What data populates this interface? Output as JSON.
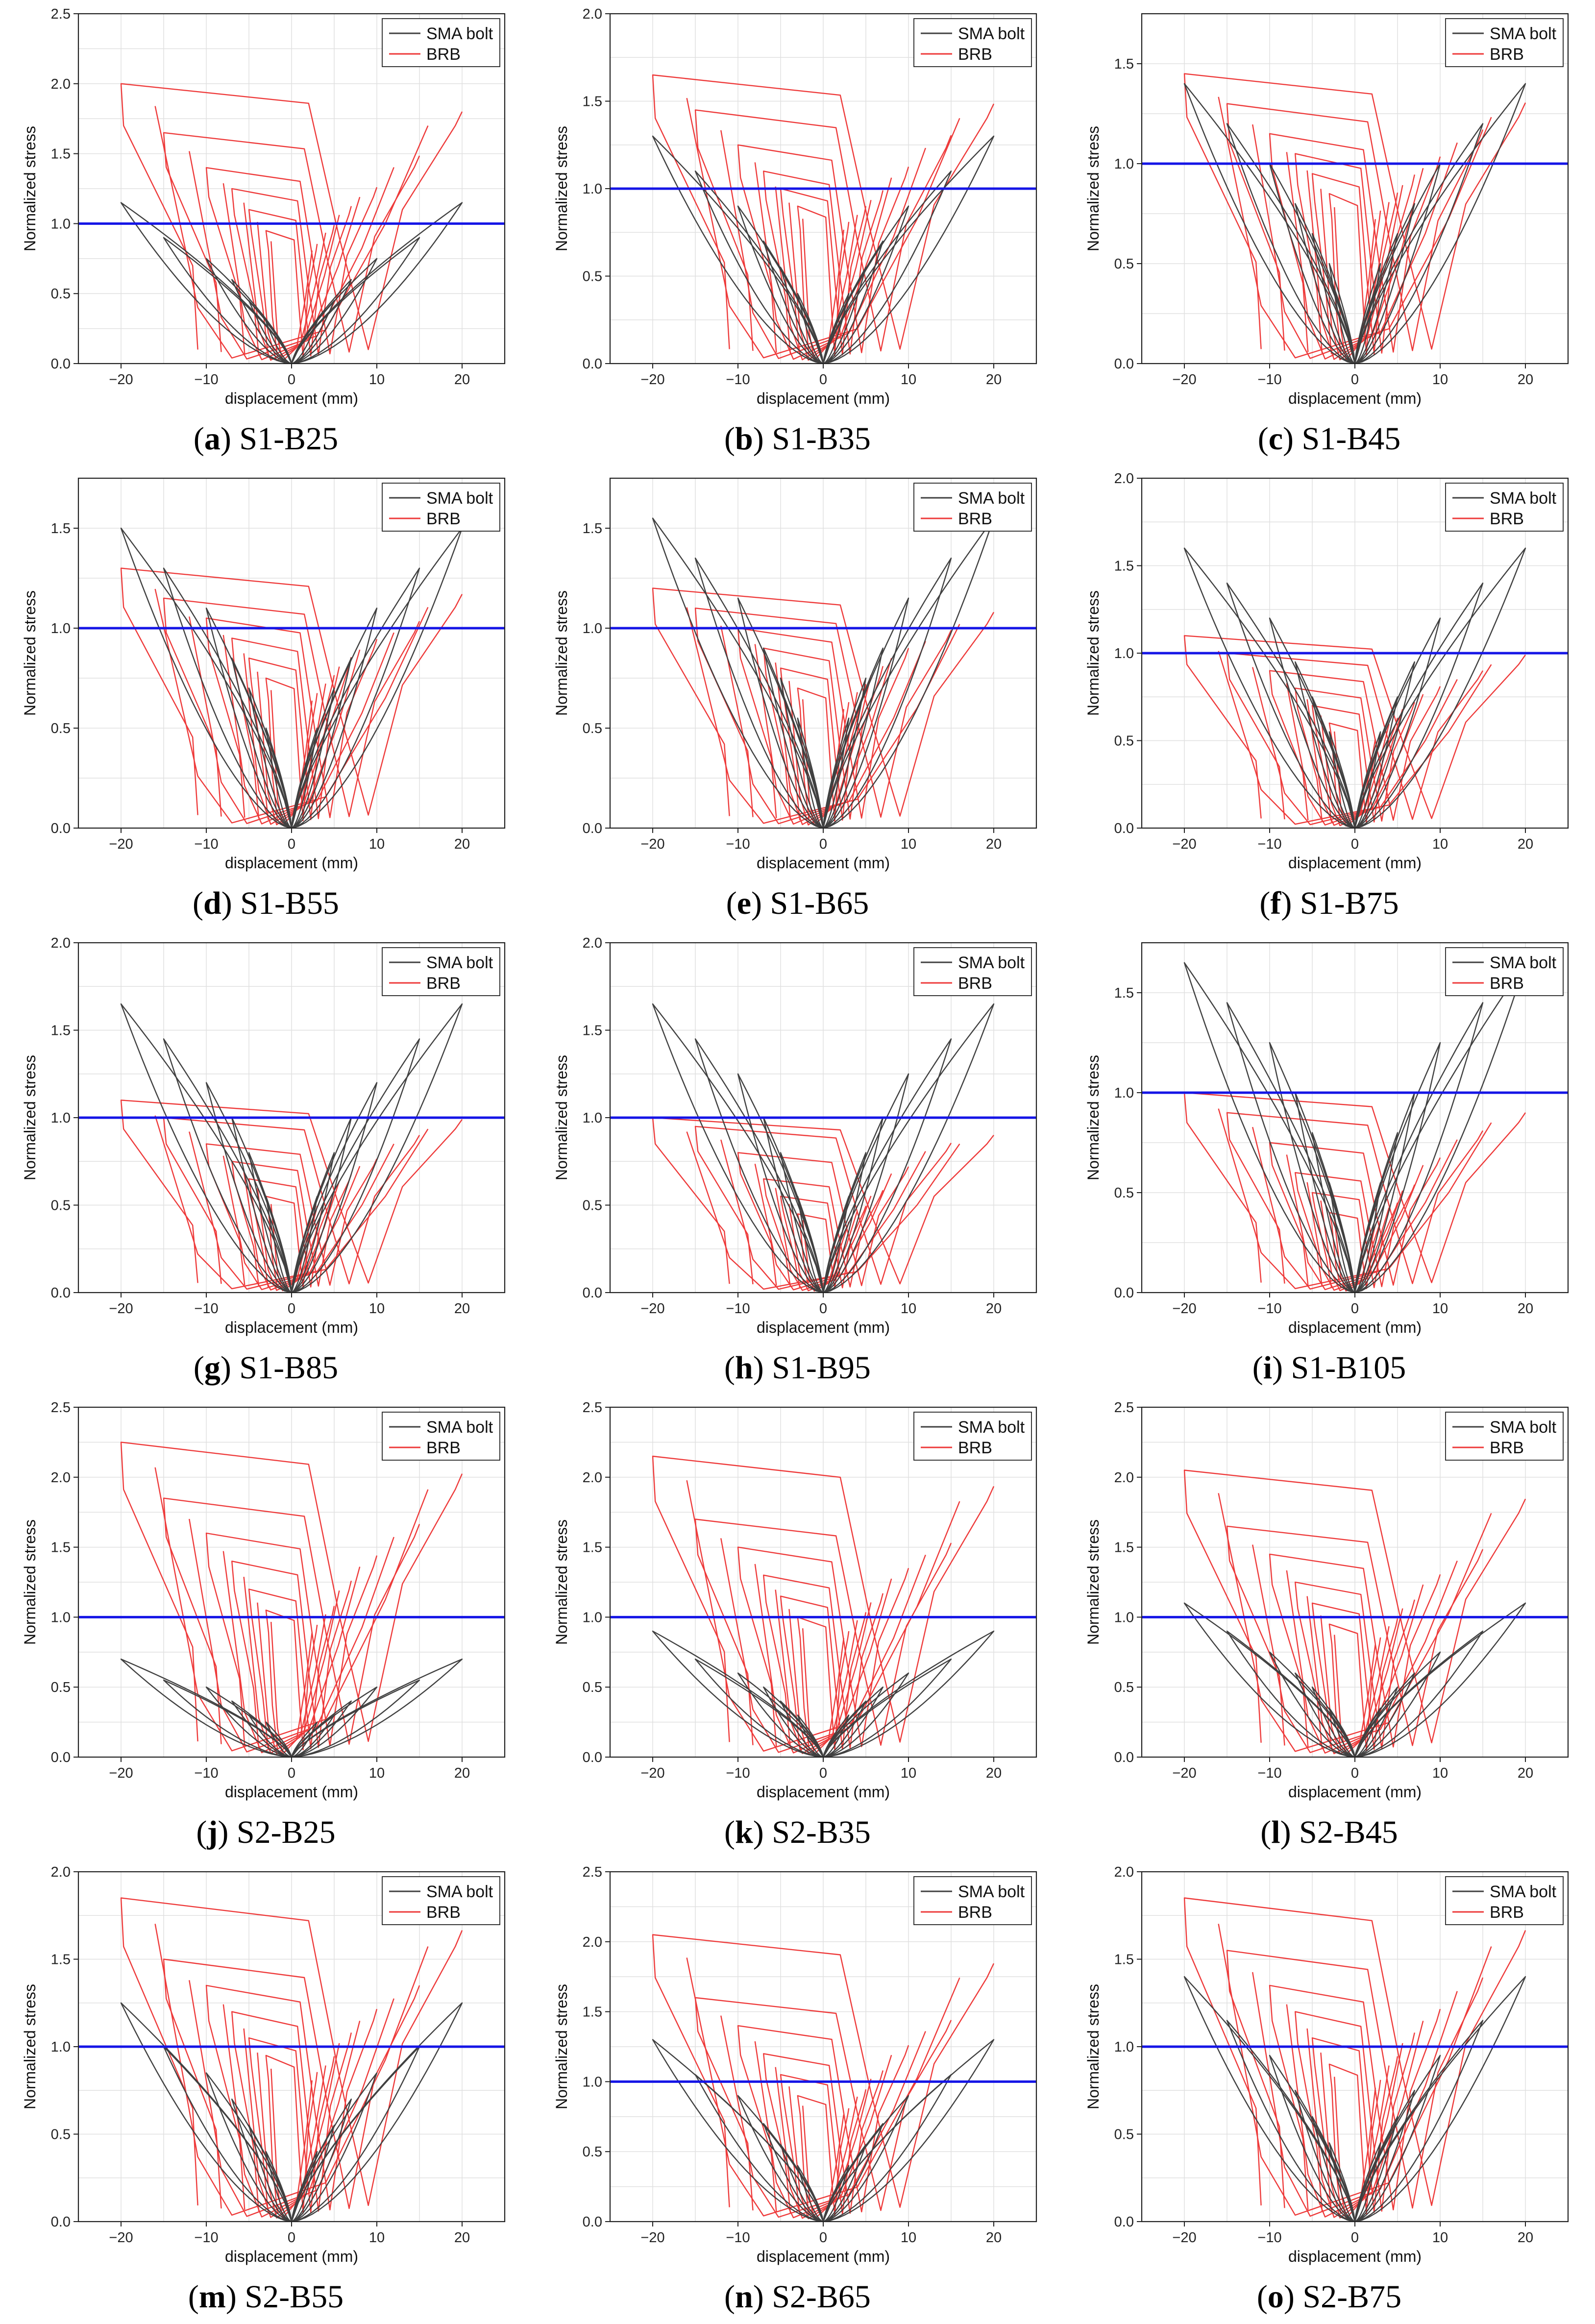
{
  "figure": {
    "x_label": "displacement (mm)",
    "y_label": "Normalized stress",
    "legend": [
      "SMA bolt",
      "BRB"
    ],
    "colors": {
      "sma": "#404040",
      "brb": "#ee3a3a",
      "ref": "#1515e6"
    }
  },
  "chart_data": [
    {
      "id": "a",
      "letter": "a",
      "name": "S1-B25",
      "type": "line",
      "xlim": [
        -25,
        25
      ],
      "ylim": [
        0,
        2.5
      ],
      "xticks": [
        -20,
        -10,
        0,
        10,
        20
      ],
      "yticks": [
        0.0,
        0.5,
        1.0,
        1.5,
        2.0,
        2.5
      ],
      "amplitudes": [
        3,
        5,
        7,
        10,
        15,
        20
      ],
      "sma_peak": [
        0.3,
        0.45,
        0.6,
        0.75,
        0.9,
        1.15
      ],
      "brb_peak": [
        0.95,
        1.1,
        1.25,
        1.4,
        1.65,
        2.0
      ],
      "reference_line": 1.0
    },
    {
      "id": "b",
      "letter": "b",
      "name": "S1-B35",
      "type": "line",
      "xlim": [
        -25,
        25
      ],
      "ylim": [
        0,
        2.0
      ],
      "xticks": [
        -20,
        -10,
        0,
        10,
        20
      ],
      "yticks": [
        0.0,
        0.5,
        1.0,
        1.5,
        2.0
      ],
      "amplitudes": [
        3,
        5,
        7,
        10,
        15,
        20
      ],
      "sma_peak": [
        0.4,
        0.55,
        0.7,
        0.9,
        1.1,
        1.3
      ],
      "brb_peak": [
        0.9,
        1.0,
        1.1,
        1.25,
        1.45,
        1.65
      ],
      "reference_line": 1.0
    },
    {
      "id": "c",
      "letter": "c",
      "name": "S1-B45",
      "type": "line",
      "xlim": [
        -25,
        25
      ],
      "ylim": [
        0,
        1.75
      ],
      "xticks": [
        -20,
        -10,
        0,
        10,
        20
      ],
      "yticks": [
        0.0,
        0.5,
        1.0,
        1.5
      ],
      "amplitudes": [
        3,
        5,
        7,
        10,
        15,
        20
      ],
      "sma_peak": [
        0.5,
        0.65,
        0.8,
        1.0,
        1.2,
        1.4
      ],
      "brb_peak": [
        0.85,
        0.95,
        1.05,
        1.15,
        1.3,
        1.45
      ],
      "reference_line": 1.0
    },
    {
      "id": "d",
      "letter": "d",
      "name": "S1-B55",
      "type": "line",
      "xlim": [
        -25,
        25
      ],
      "ylim": [
        0,
        1.75
      ],
      "xticks": [
        -20,
        -10,
        0,
        10,
        20
      ],
      "yticks": [
        0.0,
        0.5,
        1.0,
        1.5
      ],
      "amplitudes": [
        3,
        5,
        7,
        10,
        15,
        20
      ],
      "sma_peak": [
        0.5,
        0.7,
        0.85,
        1.1,
        1.3,
        1.5
      ],
      "brb_peak": [
        0.75,
        0.85,
        0.95,
        1.05,
        1.15,
        1.3
      ],
      "reference_line": 1.0
    },
    {
      "id": "e",
      "letter": "e",
      "name": "S1-B65",
      "type": "line",
      "xlim": [
        -25,
        25
      ],
      "ylim": [
        0,
        1.75
      ],
      "xticks": [
        -20,
        -10,
        0,
        10,
        20
      ],
      "yticks": [
        0.0,
        0.5,
        1.0,
        1.5
      ],
      "amplitudes": [
        3,
        5,
        7,
        10,
        15,
        20
      ],
      "sma_peak": [
        0.55,
        0.75,
        0.9,
        1.15,
        1.35,
        1.55
      ],
      "brb_peak": [
        0.7,
        0.8,
        0.9,
        1.0,
        1.1,
        1.2
      ],
      "reference_line": 1.0
    },
    {
      "id": "f",
      "letter": "f",
      "name": "S1-B75",
      "type": "line",
      "xlim": [
        -25,
        25
      ],
      "ylim": [
        0,
        2.0
      ],
      "xticks": [
        -20,
        -10,
        0,
        10,
        20
      ],
      "yticks": [
        0.0,
        0.5,
        1.0,
        1.5,
        2.0
      ],
      "amplitudes": [
        3,
        5,
        7,
        10,
        15,
        20
      ],
      "sma_peak": [
        0.55,
        0.75,
        0.95,
        1.2,
        1.4,
        1.6
      ],
      "brb_peak": [
        0.6,
        0.7,
        0.8,
        0.9,
        1.0,
        1.1
      ],
      "reference_line": 1.0
    },
    {
      "id": "g",
      "letter": "g",
      "name": "S1-B85",
      "type": "line",
      "xlim": [
        -25,
        25
      ],
      "ylim": [
        0,
        2.0
      ],
      "xticks": [
        -20,
        -10,
        0,
        10,
        20
      ],
      "yticks": [
        0.0,
        0.5,
        1.0,
        1.5,
        2.0
      ],
      "amplitudes": [
        3,
        5,
        7,
        10,
        15,
        20
      ],
      "sma_peak": [
        0.55,
        0.8,
        1.0,
        1.2,
        1.45,
        1.65
      ],
      "brb_peak": [
        0.55,
        0.65,
        0.75,
        0.85,
        1.0,
        1.1
      ],
      "reference_line": 1.0
    },
    {
      "id": "h",
      "letter": "h",
      "name": "S1-B95",
      "type": "line",
      "xlim": [
        -25,
        25
      ],
      "ylim": [
        0,
        2.0
      ],
      "xticks": [
        -20,
        -10,
        0,
        10,
        20
      ],
      "yticks": [
        0.0,
        0.5,
        1.0,
        1.5,
        2.0
      ],
      "amplitudes": [
        3,
        5,
        7,
        10,
        15,
        20
      ],
      "sma_peak": [
        0.55,
        0.8,
        1.0,
        1.25,
        1.45,
        1.65
      ],
      "brb_peak": [
        0.45,
        0.55,
        0.65,
        0.8,
        0.95,
        1.0
      ],
      "reference_line": 1.0
    },
    {
      "id": "i",
      "letter": "i",
      "name": "S1-B105",
      "type": "line",
      "xlim": [
        -25,
        25
      ],
      "ylim": [
        0,
        1.75
      ],
      "xticks": [
        -20,
        -10,
        0,
        10,
        20
      ],
      "yticks": [
        0.0,
        0.5,
        1.0,
        1.5
      ],
      "amplitudes": [
        3,
        5,
        7,
        10,
        15,
        20
      ],
      "sma_peak": [
        0.55,
        0.8,
        1.0,
        1.25,
        1.45,
        1.65
      ],
      "brb_peak": [
        0.4,
        0.5,
        0.6,
        0.75,
        0.9,
        1.0
      ],
      "reference_line": 1.0
    },
    {
      "id": "j",
      "letter": "j",
      "name": "S2-B25",
      "type": "line",
      "xlim": [
        -25,
        25
      ],
      "ylim": [
        0,
        2.5
      ],
      "xticks": [
        -20,
        -10,
        0,
        10,
        20
      ],
      "yticks": [
        0.0,
        0.5,
        1.0,
        1.5,
        2.0,
        2.5
      ],
      "amplitudes": [
        3,
        5,
        7,
        10,
        15,
        20
      ],
      "sma_peak": [
        0.25,
        0.3,
        0.4,
        0.5,
        0.55,
        0.7
      ],
      "brb_peak": [
        1.05,
        1.2,
        1.4,
        1.6,
        1.85,
        2.25
      ],
      "reference_line": 1.0
    },
    {
      "id": "k",
      "letter": "k",
      "name": "S2-B35",
      "type": "line",
      "xlim": [
        -25,
        25
      ],
      "ylim": [
        0,
        2.5
      ],
      "xticks": [
        -20,
        -10,
        0,
        10,
        20
      ],
      "yticks": [
        0.0,
        0.5,
        1.0,
        1.5,
        2.0,
        2.5
      ],
      "amplitudes": [
        3,
        5,
        7,
        10,
        15,
        20
      ],
      "sma_peak": [
        0.3,
        0.4,
        0.5,
        0.6,
        0.7,
        0.9
      ],
      "brb_peak": [
        1.0,
        1.15,
        1.3,
        1.5,
        1.7,
        2.15
      ],
      "reference_line": 1.0
    },
    {
      "id": "l",
      "letter": "l",
      "name": "S2-B45",
      "type": "line",
      "xlim": [
        -25,
        25
      ],
      "ylim": [
        0,
        2.5
      ],
      "xticks": [
        -20,
        -10,
        0,
        10,
        20
      ],
      "yticks": [
        0.0,
        0.5,
        1.0,
        1.5,
        2.0,
        2.5
      ],
      "amplitudes": [
        3,
        5,
        7,
        10,
        15,
        20
      ],
      "sma_peak": [
        0.35,
        0.5,
        0.6,
        0.75,
        0.9,
        1.1
      ],
      "brb_peak": [
        0.95,
        1.1,
        1.25,
        1.45,
        1.65,
        2.05
      ],
      "reference_line": 1.0
    },
    {
      "id": "m",
      "letter": "m",
      "name": "S2-B55",
      "type": "line",
      "xlim": [
        -25,
        25
      ],
      "ylim": [
        0,
        2.0
      ],
      "xticks": [
        -20,
        -10,
        0,
        10,
        20
      ],
      "yticks": [
        0.0,
        0.5,
        1.0,
        1.5,
        2.0
      ],
      "amplitudes": [
        3,
        5,
        7,
        10,
        15,
        20
      ],
      "sma_peak": [
        0.4,
        0.55,
        0.7,
        0.85,
        1.0,
        1.25
      ],
      "brb_peak": [
        0.95,
        1.05,
        1.2,
        1.35,
        1.5,
        1.85
      ],
      "reference_line": 1.0
    },
    {
      "id": "n",
      "letter": "n",
      "name": "S2-B65",
      "type": "line",
      "xlim": [
        -25,
        25
      ],
      "ylim": [
        0,
        2.5
      ],
      "xticks": [
        -20,
        -10,
        0,
        10,
        20
      ],
      "yticks": [
        0.0,
        0.5,
        1.0,
        1.5,
        2.0,
        2.5
      ],
      "amplitudes": [
        3,
        5,
        7,
        10,
        15,
        20
      ],
      "sma_peak": [
        0.4,
        0.55,
        0.7,
        0.9,
        1.05,
        1.3
      ],
      "brb_peak": [
        0.9,
        1.05,
        1.2,
        1.4,
        1.6,
        2.05
      ],
      "reference_line": 1.0
    },
    {
      "id": "o",
      "letter": "o",
      "name": "S2-B75",
      "type": "line",
      "xlim": [
        -25,
        25
      ],
      "ylim": [
        0,
        2.0
      ],
      "xticks": [
        -20,
        -10,
        0,
        10,
        20
      ],
      "yticks": [
        0.0,
        0.5,
        1.0,
        1.5,
        2.0
      ],
      "amplitudes": [
        3,
        5,
        7,
        10,
        15,
        20
      ],
      "sma_peak": [
        0.45,
        0.6,
        0.75,
        0.95,
        1.15,
        1.4
      ],
      "brb_peak": [
        0.9,
        1.05,
        1.2,
        1.35,
        1.55,
        1.85
      ],
      "reference_line": 1.0
    }
  ]
}
